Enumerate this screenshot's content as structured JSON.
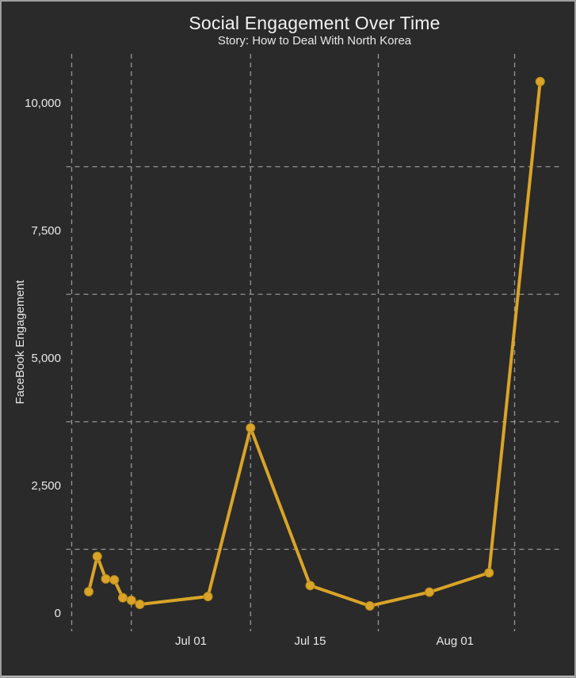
{
  "chart_data": {
    "type": "line",
    "title": "Social Engagement Over Time",
    "subtitle": "Story: How to Deal With North Korea",
    "xlabel": "",
    "ylabel": "FaceBook Engagement",
    "x": [
      "Jun 19",
      "Jun 20",
      "Jun 21",
      "Jun 22",
      "Jun 23",
      "Jun 24",
      "Jun 25",
      "Jul 03",
      "Jul 08",
      "Jul 15",
      "Jul 22",
      "Jul 29",
      "Aug 05",
      "Aug 11"
    ],
    "series": [
      {
        "name": "FaceBook Engagement",
        "values": [
          420,
          1110,
          670,
          650,
          300,
          250,
          170,
          325,
          3630,
          540,
          140,
          410,
          790,
          10420
        ]
      }
    ],
    "xticks": [
      "Jul 01",
      "Jul 15",
      "Aug 01"
    ],
    "yticks": {
      "labels": [
        "0",
        "2,500",
        "5,000",
        "7,500",
        "10,000"
      ],
      "values": [
        0,
        2500,
        5000,
        7500,
        10000
      ]
    },
    "x_minor_gridlines": [
      "Jun 17",
      "Jun 24",
      "Jul 08",
      "Jul 23",
      "Aug 08"
    ],
    "y_minor_gridlines": [
      1250,
      3750,
      6250,
      8750
    ],
    "ylim": [
      -360,
      10960
    ],
    "xlim": [
      "Jun 17",
      "Aug 14"
    ],
    "grid": "minor-dashed",
    "legend": "none",
    "colors": {
      "line": "#D9A428",
      "marker": "#D9A428",
      "marker_edge": "#B8891A",
      "background": "#2A2A2A",
      "grid": "#A9A9A9",
      "text": "#E8E8E8"
    }
  }
}
